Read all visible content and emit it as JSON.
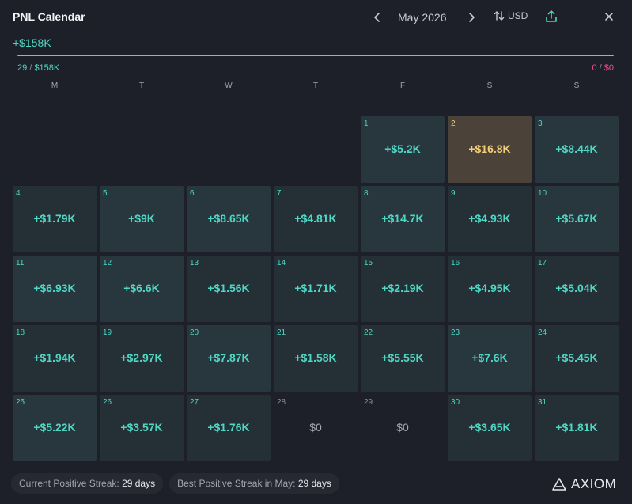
{
  "header": {
    "title": "PNL Calendar",
    "prev_label": "‹",
    "month": "May 2026",
    "next_label": "›",
    "currency": "USD"
  },
  "summary": {
    "total": "+$158K",
    "positive_days": "29",
    "positive_amount": "$158K",
    "negative_days": "0",
    "negative_amount": "$0",
    "separator": "/"
  },
  "weekdays": [
    "M",
    "T",
    "W",
    "T",
    "F",
    "S",
    "S"
  ],
  "days": [
    {
      "day": "1",
      "value": "+$5.2K",
      "style": "pos"
    },
    {
      "day": "2",
      "value": "+$16.8K",
      "style": "gold"
    },
    {
      "day": "3",
      "value": "+$8.44K",
      "style": "pos"
    },
    {
      "day": "4",
      "value": "+$1.79K",
      "style": "dark"
    },
    {
      "day": "5",
      "value": "+$9K",
      "style": "pos"
    },
    {
      "day": "6",
      "value": "+$8.65K",
      "style": "pos"
    },
    {
      "day": "7",
      "value": "+$4.81K",
      "style": "dark"
    },
    {
      "day": "8",
      "value": "+$14.7K",
      "style": "pos"
    },
    {
      "day": "9",
      "value": "+$4.93K",
      "style": "dark"
    },
    {
      "day": "10",
      "value": "+$5.67K",
      "style": "pos"
    },
    {
      "day": "11",
      "value": "+$6.93K",
      "style": "pos"
    },
    {
      "day": "12",
      "value": "+$6.6K",
      "style": "pos"
    },
    {
      "day": "13",
      "value": "+$1.56K",
      "style": "dark"
    },
    {
      "day": "14",
      "value": "+$1.71K",
      "style": "dark"
    },
    {
      "day": "15",
      "value": "+$2.19K",
      "style": "dark"
    },
    {
      "day": "16",
      "value": "+$4.95K",
      "style": "dark"
    },
    {
      "day": "17",
      "value": "+$5.04K",
      "style": "dark"
    },
    {
      "day": "18",
      "value": "+$1.94K",
      "style": "dark"
    },
    {
      "day": "19",
      "value": "+$2.97K",
      "style": "dark"
    },
    {
      "day": "20",
      "value": "+$7.87K",
      "style": "pos"
    },
    {
      "day": "21",
      "value": "+$1.58K",
      "style": "dark"
    },
    {
      "day": "22",
      "value": "+$5.55K",
      "style": "dark"
    },
    {
      "day": "23",
      "value": "+$7.6K",
      "style": "pos"
    },
    {
      "day": "24",
      "value": "+$5.45K",
      "style": "dark"
    },
    {
      "day": "25",
      "value": "+$5.22K",
      "style": "pos"
    },
    {
      "day": "26",
      "value": "+$3.57K",
      "style": "dark"
    },
    {
      "day": "27",
      "value": "+$1.76K",
      "style": "dark"
    },
    {
      "day": "28",
      "value": "$0",
      "style": "zero"
    },
    {
      "day": "29",
      "value": "$0",
      "style": "zero"
    },
    {
      "day": "30",
      "value": "+$3.65K",
      "style": "dark"
    },
    {
      "day": "31",
      "value": "+$1.81K",
      "style": "dark"
    }
  ],
  "footer": {
    "current_streak_label": "Current Positive Streak:",
    "current_streak_value": "29 days",
    "best_streak_label": "Best Positive Streak in May:",
    "best_streak_value": "29 days",
    "brand": "AXIOM"
  },
  "colors": {
    "accent": "#4fd6c4",
    "gold": "#f3cf7a",
    "negative": "#f0508c",
    "background": "#1e2029"
  },
  "icons": {
    "prev": "chevron-left-icon",
    "next": "chevron-right-icon",
    "currency": "sort-arrows-icon",
    "share": "share-icon",
    "close": "close-icon",
    "brand": "axiom-logo-icon"
  }
}
